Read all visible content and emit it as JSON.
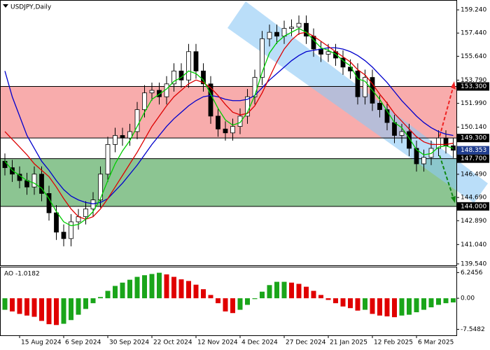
{
  "chart_data": [
    {
      "type": "candlestick",
      "title": "USDJPY,Daily",
      "open": [
        147.5,
        147.0,
        146.5,
        146.0,
        145.5,
        146.5,
        145.0,
        143.5,
        142.0,
        141.5,
        142.8,
        143.2,
        143.8,
        144.5,
        146.5,
        148.8,
        149.5,
        149.3,
        149.8,
        151.5,
        152.8,
        153.0,
        152.5,
        153.5,
        154.5,
        153.8,
        156.0,
        154.5,
        153.5,
        151.0,
        150.0,
        149.7,
        150.2,
        151.0,
        152.5,
        154.0,
        157.0,
        157.5,
        157.2,
        157.8,
        157.9,
        158.2,
        157.2,
        156.2,
        155.8,
        156.0,
        155.5,
        154.8,
        154.5,
        152.5,
        154.0,
        152.0,
        151.5,
        150.5,
        149.5,
        149.8,
        148.5,
        147.3,
        147.8,
        148.5,
        149.3,
        148.7
      ],
      "high": [
        148.1,
        147.6,
        147.1,
        146.6,
        147.1,
        147.1,
        145.6,
        144.1,
        142.6,
        143.4,
        143.8,
        144.4,
        145.1,
        147.1,
        149.4,
        150.1,
        150.1,
        150.4,
        152.1,
        153.4,
        153.6,
        153.6,
        154.1,
        155.1,
        155.1,
        156.6,
        156.6,
        155.1,
        154.1,
        151.6,
        150.6,
        150.8,
        151.6,
        153.1,
        154.6,
        157.6,
        158.1,
        158.1,
        158.4,
        158.5,
        158.8,
        158.8,
        157.8,
        156.8,
        156.6,
        156.6,
        156.1,
        155.4,
        155.1,
        154.6,
        154.6,
        152.6,
        152.1,
        151.1,
        150.4,
        150.4,
        149.1,
        148.4,
        149.1,
        149.9,
        149.9,
        149.3
      ],
      "low": [
        146.4,
        145.9,
        145.4,
        144.9,
        144.9,
        144.4,
        142.9,
        141.4,
        140.9,
        140.9,
        142.2,
        142.6,
        143.2,
        143.9,
        145.9,
        148.2,
        148.7,
        148.7,
        149.2,
        150.9,
        152.2,
        151.9,
        151.9,
        152.9,
        153.2,
        153.2,
        153.9,
        152.9,
        150.4,
        149.4,
        149.1,
        149.1,
        149.6,
        150.4,
        151.9,
        153.4,
        156.4,
        156.6,
        156.6,
        157.2,
        157.3,
        156.6,
        155.6,
        155.2,
        155.2,
        154.9,
        154.2,
        153.9,
        151.9,
        151.9,
        151.4,
        150.9,
        149.9,
        148.9,
        148.9,
        147.9,
        146.7,
        146.7,
        147.2,
        147.9,
        148.1,
        147.75
      ],
      "close": [
        147.0,
        146.5,
        146.0,
        145.5,
        146.5,
        145.0,
        143.5,
        142.0,
        141.5,
        142.8,
        143.2,
        143.8,
        144.5,
        146.5,
        148.8,
        149.5,
        149.3,
        149.8,
        151.5,
        152.8,
        153.0,
        152.5,
        153.5,
        154.5,
        153.8,
        156.0,
        154.5,
        153.5,
        151.0,
        150.0,
        149.7,
        150.2,
        151.0,
        152.5,
        154.0,
        157.0,
        157.5,
        157.2,
        157.8,
        157.9,
        158.2,
        157.2,
        156.2,
        155.8,
        156.0,
        155.5,
        154.8,
        154.5,
        152.5,
        154.0,
        152.0,
        151.5,
        150.5,
        149.5,
        149.8,
        148.5,
        147.3,
        147.8,
        148.5,
        149.3,
        148.7,
        148.353
      ],
      "up_color": "#ffffff",
      "down_color": "#000000",
      "candle_edge": "#000000",
      "lines": [
        {
          "color": "#0000cc",
          "values": [
            154.5,
            152.5,
            151,
            149.5,
            148.5,
            147.5,
            146.8,
            146,
            145.3,
            144.8,
            144.5,
            144.3,
            144.2,
            144.3,
            144.6,
            145.2,
            145.8,
            146.5,
            147.2,
            148,
            148.8,
            149.5,
            150.2,
            150.8,
            151.3,
            151.8,
            152.2,
            152.5,
            152.6,
            152.5,
            152.3,
            152.2,
            152.2,
            152.3,
            152.6,
            153.2,
            153.8,
            154.3,
            154.8,
            155.3,
            155.7,
            156,
            156.1,
            156.2,
            156.3,
            156.3,
            156.2,
            156,
            155.7,
            155.3,
            154.8,
            154.2,
            153.6,
            152.9,
            152.2,
            151.6,
            151,
            150.5,
            150.1,
            149.8,
            149.6,
            149.5
          ]
        },
        {
          "color": "#dd0000",
          "values": [
            149.8,
            149.2,
            148.6,
            148,
            147.3,
            146.8,
            146.3,
            145.5,
            144.6,
            143.8,
            143.2,
            143,
            143.2,
            143.8,
            144.6,
            145.5,
            146.4,
            147.3,
            148.2,
            149.2,
            150.2,
            151,
            151.8,
            152.5,
            153,
            153.5,
            153.8,
            153.6,
            153.2,
            152.6,
            151.9,
            151.3,
            151.1,
            151.2,
            151.8,
            152.8,
            154,
            155.2,
            156.2,
            156.9,
            157.4,
            157.5,
            157.2,
            156.8,
            156.4,
            156,
            155.6,
            155.2,
            154.6,
            154.2,
            153.5,
            152.7,
            152,
            151.2,
            150.6,
            150,
            149.4,
            149,
            148.8,
            148.8,
            148.8,
            148.9
          ]
        },
        {
          "color": "#00cc00",
          "values": [
            147.5,
            146.8,
            146.4,
            146,
            145.8,
            145.4,
            144.6,
            143.6,
            142.8,
            142.5,
            142.6,
            143,
            143.6,
            144.6,
            146,
            147.3,
            148.3,
            149.1,
            150.2,
            151.3,
            152.3,
            152.7,
            153.1,
            153.7,
            154,
            154.5,
            154.3,
            153.8,
            152.7,
            151.6,
            150.7,
            150.3,
            150.5,
            151.3,
            152.6,
            154.4,
            155.9,
            156.7,
            157.2,
            157.5,
            157.8,
            157.5,
            156.9,
            156.3,
            156.1,
            155.8,
            155.3,
            154.9,
            153.9,
            153.7,
            153,
            152.3,
            151.4,
            150.5,
            150.1,
            149.3,
            148.4,
            148,
            148.1,
            148.6,
            148.7,
            148.5
          ]
        }
      ],
      "zones": [
        {
          "from": 149.3,
          "to": 153.3,
          "color": "#f7a3a3"
        },
        {
          "from": 144.0,
          "to": 147.7,
          "color": "#7fbf86"
        }
      ],
      "levels": [
        {
          "value": 153.3,
          "label": "153.300"
        },
        {
          "value": 149.3,
          "label": "149.300"
        },
        {
          "value": 147.7,
          "label": "147.700"
        },
        {
          "value": 144.0,
          "label": "144.000"
        }
      ],
      "current_price": {
        "value": 148.353,
        "label": "148.353"
      },
      "ylim": [
        139.43,
        159.95
      ],
      "yticks": [
        {
          "value": 159.24,
          "label": "159.240"
        },
        {
          "value": 157.44,
          "label": "157.440"
        },
        {
          "value": 155.64,
          "label": "155.640"
        },
        {
          "value": 153.79,
          "label": "153.790"
        },
        {
          "value": 151.99,
          "label": "151.990"
        },
        {
          "value": 150.14,
          "label": "150.140"
        },
        {
          "value": 146.49,
          "label": "146.490"
        },
        {
          "value": 144.69,
          "label": "144.690"
        },
        {
          "value": 142.89,
          "label": "142.890"
        },
        {
          "value": 141.04,
          "label": "141.040"
        },
        {
          "value": 139.54,
          "label": "139.540"
        }
      ]
    },
    {
      "type": "histogram",
      "title": "AO -1.0182",
      "categories": [
        null,
        null,
        "15 Aug 2024",
        null,
        null,
        null,
        null,
        null,
        "6 Sep 2024",
        null,
        null,
        null,
        null,
        null,
        "30 Sep 2024",
        null,
        null,
        null,
        null,
        null,
        "22 Oct 2024",
        null,
        null,
        null,
        null,
        null,
        "12 Nov 2024",
        null,
        null,
        null,
        null,
        null,
        "4 Dec 2024",
        null,
        null,
        null,
        null,
        null,
        "27 Dec 2024",
        null,
        null,
        null,
        null,
        null,
        "21 Jan 2025",
        null,
        null,
        null,
        null,
        null,
        "12 Feb 2025",
        null,
        null,
        null,
        null,
        null,
        "6 Mar 2025",
        null,
        null,
        null,
        null,
        null
      ],
      "values": [
        -2.8,
        -3.2,
        -3.8,
        -4.2,
        -4.5,
        -5.5,
        -6.3,
        -6.5,
        -6.2,
        -5.3,
        -4.0,
        -2.6,
        -1.2,
        0.3,
        1.8,
        3.0,
        3.8,
        4.5,
        5.2,
        5.6,
        5.9,
        6.2,
        5.8,
        5.2,
        4.6,
        4.2,
        3.3,
        2.2,
        0.8,
        -1.2,
        -3.2,
        -3.6,
        -2.8,
        -1.6,
        -0.2,
        1.6,
        3.2,
        4.0,
        4.0,
        3.8,
        3.5,
        2.8,
        1.8,
        0.8,
        -0.4,
        -1.2,
        -2.0,
        -2.4,
        -3.0,
        -2.8,
        -3.8,
        -4.2,
        -4.4,
        -4.6,
        -4.2,
        -4.0,
        -3.4,
        -2.8,
        -2.2,
        -1.6,
        -1.2,
        -1.0182
      ],
      "up_color": "#1aa51a",
      "down_color": "#e00000",
      "ylim": [
        -9,
        7.5
      ],
      "yticks": [
        6.2456,
        {
          "value": 0,
          "label": "0.00"
        },
        -7.5482
      ]
    }
  ]
}
